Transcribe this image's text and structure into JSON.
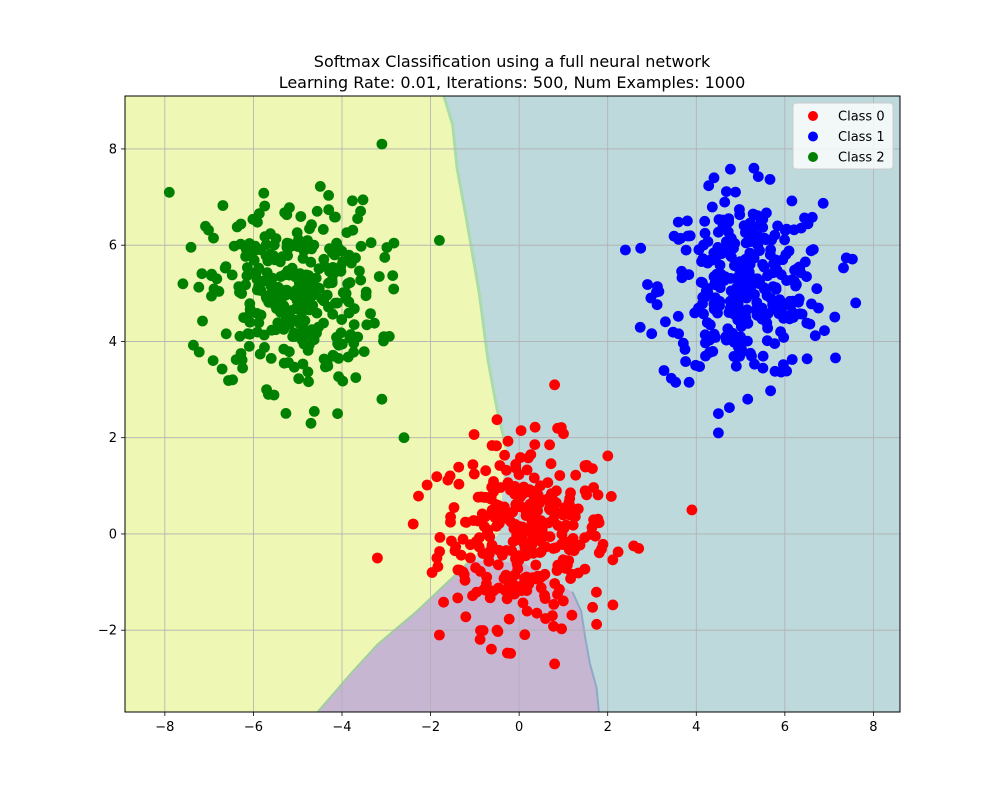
{
  "chart_data": {
    "type": "scatter",
    "title": "Softmax Classification using a full neural network",
    "subtitle": "Learning Rate: 0.01, Iterations: 500, Num Examples: 1000",
    "xlabel": "",
    "ylabel": "",
    "xlim": [
      -8.9,
      8.6
    ],
    "ylim": [
      -3.7,
      9.1
    ],
    "x_ticks": [
      -8,
      -6,
      -4,
      -2,
      0,
      2,
      4,
      6,
      8
    ],
    "y_ticks": [
      -2,
      0,
      2,
      4,
      6,
      8
    ],
    "x_tick_labels": [
      "−8",
      "−6",
      "−4",
      "−2",
      "0",
      "2",
      "4",
      "6",
      "8"
    ],
    "y_tick_labels": [
      "−2",
      "0",
      "2",
      "4",
      "6",
      "8"
    ],
    "grid": true,
    "legend_position": "top-right",
    "decision_regions": [
      {
        "class": "Class 2",
        "color": "#eff7b4"
      },
      {
        "class": "Class 1",
        "color": "#bed9dc"
      },
      {
        "class": "Class 0",
        "color": "#c7b6d2"
      }
    ],
    "series": [
      {
        "name": "Class 0",
        "color": "#ff0000",
        "center": [
          0.1,
          0.0
        ],
        "spread": 0.95,
        "count": 333,
        "outliers": [
          [
            3.9,
            0.5
          ],
          [
            -3.2,
            -0.5
          ],
          [
            -1.8,
            -2.1
          ],
          [
            0.8,
            3.1
          ],
          [
            0.8,
            -2.7
          ],
          [
            -0.5,
            -2.0
          ],
          [
            2.7,
            -0.3
          ]
        ]
      },
      {
        "name": "Class 1",
        "color": "#0000ff",
        "center": [
          5.1,
          5.1
        ],
        "spread": 0.95,
        "count": 333,
        "outliers": [
          [
            4.5,
            2.1
          ],
          [
            4.4,
            7.4
          ],
          [
            2.4,
            5.9
          ],
          [
            7.6,
            4.8
          ],
          [
            5.3,
            7.6
          ],
          [
            4.5,
            2.5
          ]
        ]
      },
      {
        "name": "Class 2",
        "color": "#008000",
        "center": [
          -5.1,
          5.0
        ],
        "spread": 0.95,
        "count": 334,
        "outliers": [
          [
            -3.1,
            8.1
          ],
          [
            -7.9,
            7.1
          ],
          [
            -2.6,
            2.0
          ],
          [
            -1.8,
            6.1
          ],
          [
            -4.1,
            2.5
          ],
          [
            -4.7,
            2.3
          ],
          [
            -3.1,
            2.8
          ]
        ]
      }
    ]
  }
}
